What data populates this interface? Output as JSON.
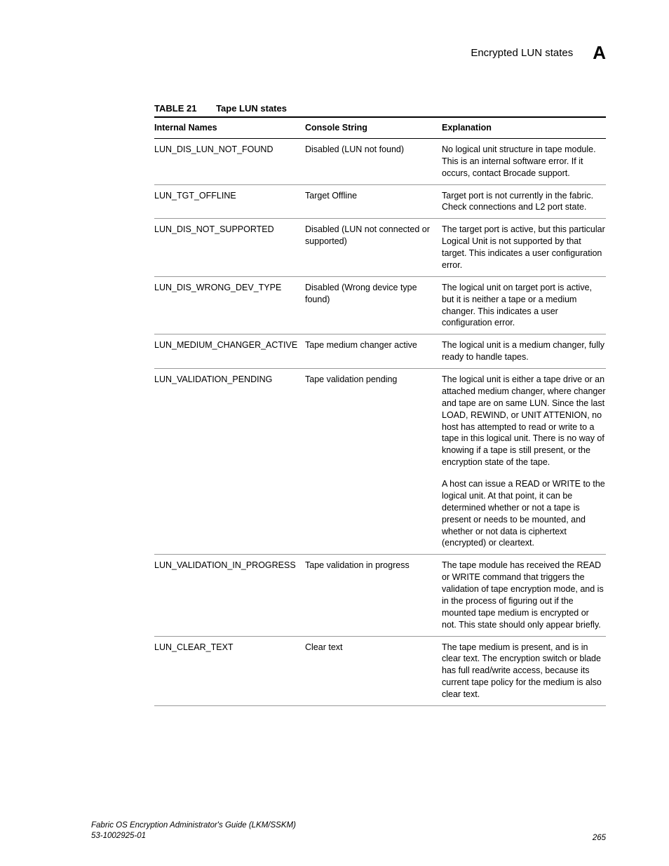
{
  "header": {
    "section_title": "Encrypted LUN states",
    "appendix_letter": "A"
  },
  "table": {
    "label": "TABLE 21",
    "title": "Tape LUN states",
    "columns": [
      "Internal Names",
      "Console String",
      "Explanation"
    ],
    "rows": [
      {
        "internal": "LUN_DIS_LUN_NOT_FOUND",
        "console": "Disabled (LUN not found)",
        "explanation": "No logical unit structure in tape module. This is an internal software error. If it occurs, contact Brocade support."
      },
      {
        "internal": "LUN_TGT_OFFLINE",
        "console": "Target Offline",
        "explanation": "Target port is not currently in the fabric. Check connections and L2 port state."
      },
      {
        "internal": "LUN_DIS_NOT_SUPPORTED",
        "console": "Disabled (LUN not connected or supported)",
        "explanation": "The target port is active, but this particular Logical Unit is not supported by that target. This indicates a user configuration error."
      },
      {
        "internal": "LUN_DIS_WRONG_DEV_TYPE",
        "console": "Disabled (Wrong device type found)",
        "explanation": "The logical unit on target port is active, but it is neither a tape or a medium changer. This indicates a user configuration error."
      },
      {
        "internal": "LUN_MEDIUM_CHANGER_ACTIVE",
        "console": "Tape medium changer active",
        "explanation": "The logical unit is a medium changer, fully ready to handle tapes."
      },
      {
        "internal": "LUN_VALIDATION_PENDING",
        "console": "Tape validation pending",
        "explanation_p1": "The logical unit is either a tape drive or an attached medium changer, where changer and tape are on same LUN. Since the last LOAD, REWIND, or UNIT ATTENION, no host has attempted to read or write to a tape in this logical unit. There is no way of knowing if a tape is still present, or the encryption state of the tape.",
        "explanation_p2": "A host can issue a READ or WRITE to the logical unit. At that point, it can be determined whether or not a tape is present or needs to be mounted, and whether or not data is ciphertext (encrypted) or cleartext."
      },
      {
        "internal": "LUN_VALIDATION_IN_PROGRESS",
        "console": "Tape validation in progress",
        "explanation": "The tape module has received the READ or WRITE command that triggers the validation of tape encryption mode, and is in the process of figuring out if the mounted tape medium is encrypted or not. This state should only appear briefly."
      },
      {
        "internal": "LUN_CLEAR_TEXT",
        "console": "Clear text",
        "explanation": "The tape medium is present, and is in clear text. The encryption switch or blade has full read/write access, because its current tape policy for the medium is also clear text."
      }
    ]
  },
  "footer": {
    "guide_title": "Fabric OS Encryption Administrator's Guide  (LKM/SSKM)",
    "doc_number": "53-1002925-01",
    "page_number": "265"
  }
}
